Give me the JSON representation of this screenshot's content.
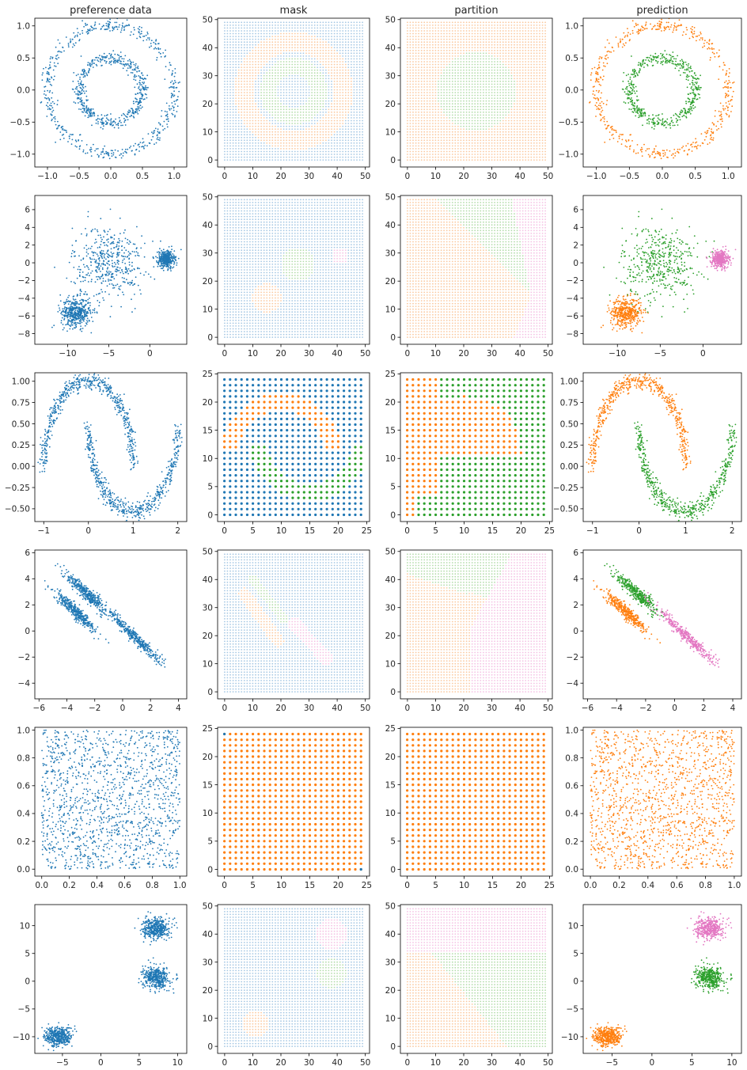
{
  "figure": {
    "column_titles": [
      "preference data",
      "mask",
      "partition",
      "prediction"
    ],
    "colors": {
      "data": "#1f77b4",
      "mask_grid": "#a6c8e4",
      "orange": "#ff7f0e",
      "orange_light": "#fbc99f",
      "green": "#2ca02c",
      "green_light": "#b3dcaa",
      "pink": "#e377c2",
      "pink_light": "#f5c2e4"
    }
  },
  "chart_data": [
    {
      "row": 1,
      "col": 1,
      "type": "scatter",
      "title": "preference data",
      "dataset": "two concentric circles (outer radius 1.0, inner radius 0.5)",
      "color": "data",
      "xlim": [
        -1.2,
        1.2
      ],
      "ylim": [
        -1.2,
        1.12
      ],
      "xticks": [
        -1.0,
        -0.5,
        0.0,
        0.5,
        1.0
      ],
      "xtick_labels": [
        "−1.0",
        "−0.5",
        "0.0",
        "0.5",
        "1.0"
      ],
      "yticks": [
        -1.0,
        -0.5,
        0.0,
        0.5,
        1.0
      ],
      "ytick_labels": [
        "−1.0",
        "−0.5",
        "0.0",
        "0.5",
        "1.0"
      ]
    },
    {
      "row": 1,
      "col": 2,
      "type": "scatter",
      "title": "mask",
      "dataset": "50×50 grid mask: blue background, orange outer ring, green inner ring",
      "color": "mask_grid",
      "xlim": [
        -2.5,
        51.5
      ],
      "ylim": [
        -2.5,
        50.5
      ],
      "xticks": [
        0,
        10,
        20,
        30,
        40,
        50
      ],
      "xtick_labels": [
        "0",
        "10",
        "20",
        "30",
        "40",
        "50"
      ],
      "yticks": [
        0,
        10,
        20,
        30,
        40,
        50
      ],
      "ytick_labels": [
        "0",
        "10",
        "20",
        "30",
        "40",
        "50"
      ]
    },
    {
      "row": 1,
      "col": 3,
      "type": "scatter",
      "title": "partition",
      "dataset": "50×50 grid partition: orange everywhere, green disc in the centre",
      "color": "orange",
      "xlim": [
        -2.5,
        51.5
      ],
      "ylim": [
        -2.5,
        50.5
      ],
      "xticks": [
        0,
        10,
        20,
        30,
        40,
        50
      ],
      "xtick_labels": [
        "0",
        "10",
        "20",
        "30",
        "40",
        "50"
      ],
      "yticks": [
        0,
        10,
        20,
        30,
        40,
        50
      ],
      "ytick_labels": [
        "0",
        "10",
        "20",
        "30",
        "40",
        "50"
      ]
    },
    {
      "row": 1,
      "col": 4,
      "type": "scatter",
      "title": "prediction",
      "dataset": "circles coloured by cluster: outer orange, inner green",
      "color": "orange",
      "xlim": [
        -1.2,
        1.2
      ],
      "ylim": [
        -1.2,
        1.12
      ],
      "xticks": [
        -1.0,
        -0.5,
        0.0,
        0.5,
        1.0
      ],
      "xtick_labels": [
        "−1.0",
        "−0.5",
        "0.0",
        "0.5",
        "1.0"
      ],
      "yticks": [
        -1.0,
        -0.5,
        0.0,
        0.5,
        1.0
      ],
      "ytick_labels": [
        "−1.0",
        "−0.5",
        "0.0",
        "0.5",
        "1.0"
      ]
    },
    {
      "row": 2,
      "col": 1,
      "type": "scatter",
      "dataset": "three blobs: tight at (-9,-5.5), tight at (2,0.5), wide at (-5,0)",
      "color": "data",
      "xlim": [
        -14,
        4.5
      ],
      "ylim": [
        -9.2,
        7.6
      ],
      "xticks": [
        -10,
        -5,
        0
      ],
      "xtick_labels": [
        "−10",
        "−5",
        "0"
      ],
      "yticks": [
        -8,
        -6,
        -4,
        -2,
        0,
        2,
        4,
        6
      ],
      "ytick_labels": [
        "−8",
        "−6",
        "−4",
        "−2",
        "0",
        "2",
        "4",
        "6"
      ]
    },
    {
      "row": 2,
      "col": 2,
      "type": "scatter",
      "title": "",
      "dataset": "50×50 grid mask with orange, green and pink blobs",
      "color": "mask_grid",
      "xlim": [
        -2.5,
        51.5
      ],
      "ylim": [
        -2.5,
        50.5
      ],
      "xticks": [
        0,
        10,
        20,
        30,
        40,
        50
      ],
      "xtick_labels": [
        "0",
        "10",
        "20",
        "30",
        "40",
        "50"
      ],
      "yticks": [
        0,
        10,
        20,
        30,
        40,
        50
      ],
      "ytick_labels": [
        "0",
        "10",
        "20",
        "30",
        "40",
        "50"
      ]
    },
    {
      "row": 2,
      "col": 3,
      "type": "scatter",
      "dataset": "50×50 grid partition: orange lower-left, green upper, pink right",
      "color": "orange",
      "xlim": [
        -2.5,
        51.5
      ],
      "ylim": [
        -2.5,
        50.5
      ],
      "xticks": [
        0,
        10,
        20,
        30,
        40,
        50
      ],
      "xtick_labels": [
        "0",
        "10",
        "20",
        "30",
        "40",
        "50"
      ],
      "yticks": [
        0,
        10,
        20,
        30,
        40,
        50
      ],
      "ytick_labels": [
        "0",
        "10",
        "20",
        "30",
        "40",
        "50"
      ]
    },
    {
      "row": 2,
      "col": 4,
      "type": "scatter",
      "dataset": "blobs coloured: orange (-9,-5.5), green (-5,0), pink (2,0.5)",
      "color": "orange",
      "xlim": [
        -14,
        4.5
      ],
      "ylim": [
        -9.2,
        7.6
      ],
      "xticks": [
        -10,
        -5,
        0
      ],
      "xtick_labels": [
        "−10",
        "−5",
        "0"
      ],
      "yticks": [
        -8,
        -6,
        -4,
        -2,
        0,
        2,
        4,
        6
      ],
      "ytick_labels": [
        "−8",
        "−6",
        "−4",
        "−2",
        "0",
        "2",
        "4",
        "6"
      ]
    },
    {
      "row": 3,
      "col": 1,
      "type": "scatter",
      "dataset": "two interleaving half moons",
      "color": "data",
      "xlim": [
        -1.2,
        2.2
      ],
      "ylim": [
        -0.65,
        1.1
      ],
      "xticks": [
        -1,
        0,
        1,
        2
      ],
      "xtick_labels": [
        "−1",
        "0",
        "1",
        "2"
      ],
      "yticks": [
        -0.5,
        -0.25,
        0.0,
        0.25,
        0.5,
        0.75,
        1.0
      ],
      "ytick_labels": [
        "−0.50",
        "−0.25",
        "0.00",
        "0.25",
        "0.50",
        "0.75",
        "1.00"
      ]
    },
    {
      "row": 3,
      "col": 2,
      "type": "scatter",
      "dataset": "25×25 grid mask: orange upper arc, green lower arc",
      "color": "data",
      "xlim": [
        -1.2,
        25.5
      ],
      "ylim": [
        -1.2,
        25.2
      ],
      "xticks": [
        0,
        5,
        10,
        15,
        20,
        25
      ],
      "xtick_labels": [
        "0",
        "5",
        "10",
        "15",
        "20",
        "25"
      ],
      "yticks": [
        0,
        5,
        10,
        15,
        20,
        25
      ],
      "ytick_labels": [
        "0",
        "5",
        "10",
        "15",
        "20",
        "25"
      ]
    },
    {
      "row": 3,
      "col": 3,
      "type": "scatter",
      "dataset": "25×25 grid partition: orange left, green right",
      "color": "orange",
      "xlim": [
        -1.2,
        25.5
      ],
      "ylim": [
        -1.2,
        25.2
      ],
      "xticks": [
        0,
        5,
        10,
        15,
        20,
        25
      ],
      "xtick_labels": [
        "0",
        "5",
        "10",
        "15",
        "20",
        "25"
      ],
      "yticks": [
        0,
        5,
        10,
        15,
        20,
        25
      ],
      "ytick_labels": [
        "0",
        "5",
        "10",
        "15",
        "20",
        "25"
      ]
    },
    {
      "row": 3,
      "col": 4,
      "type": "scatter",
      "dataset": "moons coloured: upper orange, lower green",
      "color": "orange",
      "xlim": [
        -1.2,
        2.2
      ],
      "ylim": [
        -0.65,
        1.1
      ],
      "xticks": [
        -1,
        0,
        1,
        2
      ],
      "xtick_labels": [
        "−1",
        "0",
        "1",
        "2"
      ],
      "yticks": [
        -0.5,
        -0.25,
        0.0,
        0.25,
        0.5,
        0.75,
        1.0
      ],
      "ytick_labels": [
        "−0.50",
        "−0.25",
        "0.00",
        "0.25",
        "0.50",
        "0.75",
        "1.00"
      ]
    },
    {
      "row": 4,
      "col": 1,
      "type": "scatter",
      "dataset": "three anisotropic (diagonal) blobs",
      "color": "data",
      "xlim": [
        -6.3,
        4.6
      ],
      "ylim": [
        -5.2,
        6.2
      ],
      "xticks": [
        -6,
        -4,
        -2,
        0,
        2,
        4
      ],
      "xtick_labels": [
        "−6",
        "−4",
        "−2",
        "0",
        "2",
        "4"
      ],
      "yticks": [
        -4,
        -2,
        0,
        2,
        4,
        6
      ],
      "ytick_labels": [
        "−4",
        "−2",
        "0",
        "2",
        "4",
        "6"
      ]
    },
    {
      "row": 4,
      "col": 2,
      "type": "scatter",
      "dataset": "50×50 grid mask with orange, green and pink diagonal streaks",
      "color": "mask_grid",
      "xlim": [
        -2.5,
        51.5
      ],
      "ylim": [
        -2.5,
        50.5
      ],
      "xticks": [
        0,
        10,
        20,
        30,
        40,
        50
      ],
      "xtick_labels": [
        "0",
        "10",
        "20",
        "30",
        "40",
        "50"
      ],
      "yticks": [
        0,
        10,
        20,
        30,
        40,
        50
      ],
      "ytick_labels": [
        "0",
        "10",
        "20",
        "30",
        "40",
        "50"
      ]
    },
    {
      "row": 4,
      "col": 3,
      "type": "scatter",
      "dataset": "50×50 grid partition: orange left, green top, pink right",
      "color": "orange",
      "xlim": [
        -2.5,
        51.5
      ],
      "ylim": [
        -2.5,
        50.5
      ],
      "xticks": [
        0,
        10,
        20,
        30,
        40,
        50
      ],
      "xtick_labels": [
        "0",
        "10",
        "20",
        "30",
        "40",
        "50"
      ],
      "yticks": [
        0,
        10,
        20,
        30,
        40,
        50
      ],
      "ytick_labels": [
        "0",
        "10",
        "20",
        "30",
        "40",
        "50"
      ]
    },
    {
      "row": 4,
      "col": 4,
      "type": "scatter",
      "dataset": "anisotropic blobs coloured: orange, green, pink",
      "color": "orange",
      "xlim": [
        -6.3,
        4.6
      ],
      "ylim": [
        -5.2,
        6.2
      ],
      "xticks": [
        -6,
        -4,
        -2,
        0,
        2,
        4
      ],
      "xtick_labels": [
        "−6",
        "−4",
        "−2",
        "0",
        "2",
        "4"
      ],
      "yticks": [
        -4,
        -2,
        0,
        2,
        4,
        6
      ],
      "ytick_labels": [
        "−4",
        "−2",
        "0",
        "2",
        "4",
        "6"
      ]
    },
    {
      "row": 5,
      "col": 1,
      "type": "scatter",
      "dataset": "uniform random points on [0,1]×[0,1]",
      "color": "data",
      "xlim": [
        -0.05,
        1.05
      ],
      "ylim": [
        -0.05,
        1.02
      ],
      "xticks": [
        0.0,
        0.2,
        0.4,
        0.6,
        0.8,
        1.0
      ],
      "xtick_labels": [
        "0.0",
        "0.2",
        "0.4",
        "0.6",
        "0.8",
        "1.0"
      ],
      "yticks": [
        0.0,
        0.2,
        0.4,
        0.6,
        0.8,
        1.0
      ],
      "ytick_labels": [
        "0.0",
        "0.2",
        "0.4",
        "0.6",
        "0.8",
        "1.0"
      ]
    },
    {
      "row": 5,
      "col": 2,
      "type": "scatter",
      "dataset": "25×25 grid mask, all orange",
      "color": "orange",
      "xlim": [
        -1.2,
        25.5
      ],
      "ylim": [
        -1.2,
        25.2
      ],
      "xticks": [
        0,
        5,
        10,
        15,
        20,
        25
      ],
      "xtick_labels": [
        "0",
        "5",
        "10",
        "15",
        "20",
        "25"
      ],
      "yticks": [
        0,
        5,
        10,
        15,
        20,
        25
      ],
      "ytick_labels": [
        "0",
        "5",
        "10",
        "15",
        "20",
        "25"
      ]
    },
    {
      "row": 5,
      "col": 3,
      "type": "scatter",
      "dataset": "25×25 grid partition, all orange",
      "color": "orange",
      "xlim": [
        -1.2,
        25.5
      ],
      "ylim": [
        -1.2,
        25.2
      ],
      "xticks": [
        0,
        5,
        10,
        15,
        20,
        25
      ],
      "xtick_labels": [
        "0",
        "5",
        "10",
        "15",
        "20",
        "25"
      ],
      "yticks": [
        0,
        5,
        10,
        15,
        20,
        25
      ],
      "ytick_labels": [
        "0",
        "5",
        "10",
        "15",
        "20",
        "25"
      ]
    },
    {
      "row": 5,
      "col": 4,
      "type": "scatter",
      "dataset": "uniform points, all orange",
      "color": "orange",
      "xlim": [
        -0.05,
        1.05
      ],
      "ylim": [
        -0.05,
        1.02
      ],
      "xticks": [
        0.0,
        0.2,
        0.4,
        0.6,
        0.8,
        1.0
      ],
      "xtick_labels": [
        "0.0",
        "0.2",
        "0.4",
        "0.6",
        "0.8",
        "1.0"
      ],
      "yticks": [
        0.0,
        0.2,
        0.4,
        0.6,
        0.8,
        1.0
      ],
      "ytick_labels": [
        "0.0",
        "0.2",
        "0.4",
        "0.6",
        "0.8",
        "1.0"
      ]
    },
    {
      "row": 6,
      "col": 1,
      "type": "scatter",
      "dataset": "three tight blobs: (-5.5,-10), (7,0.5), (7,9.5)",
      "color": "data",
      "xlim": [
        -8.6,
        11.2
      ],
      "ylim": [
        -13,
        13.8
      ],
      "xticks": [
        -5,
        0,
        5,
        10
      ],
      "xtick_labels": [
        "−5",
        "0",
        "5",
        "10"
      ],
      "yticks": [
        -10,
        -5,
        0,
        5,
        10
      ],
      "ytick_labels": [
        "−10",
        "−5",
        "0",
        "5",
        "10"
      ]
    },
    {
      "row": 6,
      "col": 2,
      "type": "scatter",
      "dataset": "50×50 grid mask with orange, green and pink blobs",
      "color": "mask_grid",
      "xlim": [
        -2.5,
        51.5
      ],
      "ylim": [
        -2.5,
        50.5
      ],
      "xticks": [
        0,
        10,
        20,
        30,
        40,
        50
      ],
      "xtick_labels": [
        "0",
        "10",
        "20",
        "30",
        "40",
        "50"
      ],
      "yticks": [
        0,
        10,
        20,
        30,
        40,
        50
      ],
      "ytick_labels": [
        "0",
        "10",
        "20",
        "30",
        "40",
        "50"
      ]
    },
    {
      "row": 6,
      "col": 3,
      "type": "scatter",
      "dataset": "50×50 grid partition: orange lower-left, green lower-right, pink top",
      "color": "orange",
      "xlim": [
        -2.5,
        51.5
      ],
      "ylim": [
        -2.5,
        50.5
      ],
      "xticks": [
        0,
        10,
        20,
        30,
        40,
        50
      ],
      "xtick_labels": [
        "0",
        "10",
        "20",
        "30",
        "40",
        "50"
      ],
      "yticks": [
        0,
        10,
        20,
        30,
        40,
        50
      ],
      "ytick_labels": [
        "0",
        "10",
        "20",
        "30",
        "40",
        "50"
      ]
    },
    {
      "row": 6,
      "col": 4,
      "type": "scatter",
      "dataset": "blobs coloured: orange (-5.5,-10), green (7,0.5), pink (7,9.5)",
      "color": "orange",
      "xlim": [
        -8.6,
        11.2
      ],
      "ylim": [
        -13,
        13.8
      ],
      "xticks": [
        -5,
        0,
        5,
        10
      ],
      "xtick_labels": [
        "−5",
        "0",
        "5",
        "10"
      ],
      "yticks": [
        -10,
        -5,
        0,
        5,
        10
      ],
      "ytick_labels": [
        "−10",
        "−5",
        "0",
        "5",
        "10"
      ]
    }
  ]
}
